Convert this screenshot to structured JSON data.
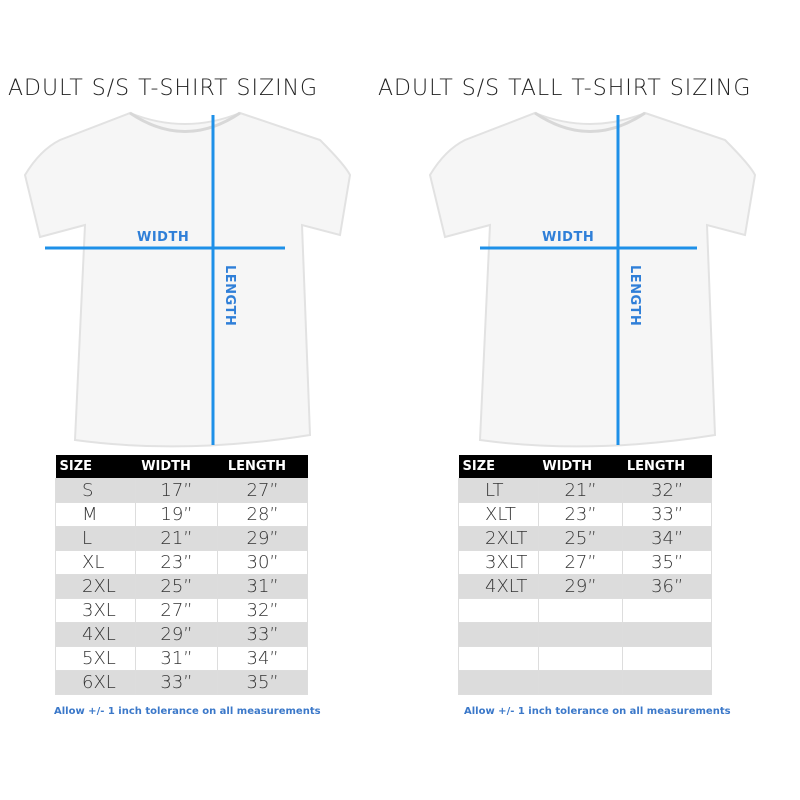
{
  "left": {
    "title": "ADULT S/S T-SHIRT SIZING",
    "width_label": "WIDTH",
    "length_label": "LENGTH",
    "headers": [
      "SIZE",
      "WIDTH",
      "LENGTH"
    ],
    "rows": [
      [
        "S",
        "17”",
        "27”"
      ],
      [
        "M",
        "19”",
        "28”"
      ],
      [
        "L",
        "21”",
        "29”"
      ],
      [
        "XL",
        "23”",
        "30”"
      ],
      [
        "2XL",
        "25”",
        "31”"
      ],
      [
        "3XL",
        "27”",
        "32”"
      ],
      [
        "4XL",
        "29”",
        "33”"
      ],
      [
        "5XL",
        "31”",
        "34”"
      ],
      [
        "6XL",
        "33”",
        "35”"
      ]
    ],
    "note": "Allow +/- 1 inch tolerance on all measurements"
  },
  "right": {
    "title": "ADULT S/S TALL T-SHIRT SIZING",
    "width_label": "WIDTH",
    "length_label": "LENGTH",
    "headers": [
      "SIZE",
      "WIDTH",
      "LENGTH"
    ],
    "rows": [
      [
        "LT",
        "21”",
        "32”"
      ],
      [
        "XLT",
        "23”",
        "33”"
      ],
      [
        "2XLT",
        "25”",
        "34”"
      ],
      [
        "3XLT",
        "27”",
        "35”"
      ],
      [
        "4XLT",
        "29”",
        "36”"
      ],
      [
        "",
        "",
        ""
      ],
      [
        "",
        "",
        ""
      ],
      [
        "",
        "",
        ""
      ],
      [
        "",
        "",
        ""
      ]
    ],
    "note": "Allow +/- 1 inch tolerance on all measurements"
  },
  "colors": {
    "measure_line": "#1e90e8",
    "header_bg": "#000000",
    "stripe": "#dcdcdc",
    "note": "#3b78c9"
  }
}
